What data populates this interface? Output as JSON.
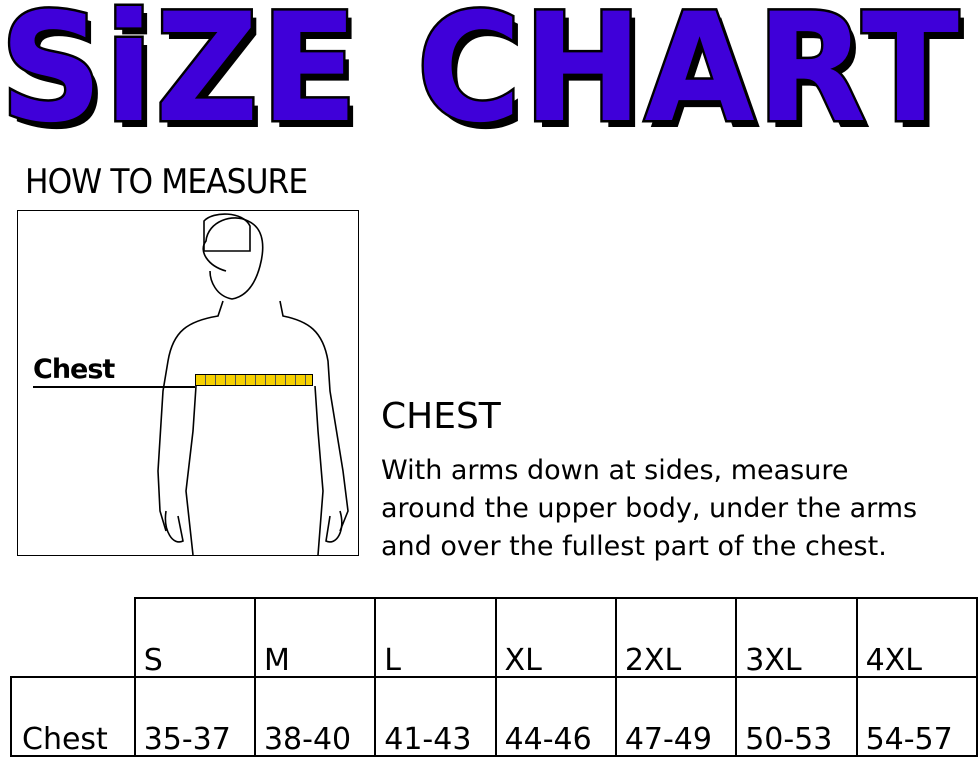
{
  "title": {
    "word1": "SiZE",
    "word2": "CHART",
    "color": "#3f00d9"
  },
  "how_to_measure": "HOW TO MEASURE",
  "figure": {
    "chest_label": "Chest",
    "tape_color": "#f5d000"
  },
  "section": {
    "heading": "CHEST",
    "lines": [
      "With arms down at sides, measure",
      "around the upper body, under the arms",
      "and over the fullest part of the chest."
    ]
  },
  "table": {
    "sizes": [
      "S",
      "M",
      "L",
      "XL",
      "2XL",
      "3XL",
      "4XL"
    ],
    "row_label": "Chest",
    "values": [
      "35-37",
      "38-40",
      "41-43",
      "44-46",
      "47-49",
      "50-53",
      "54-57"
    ]
  }
}
